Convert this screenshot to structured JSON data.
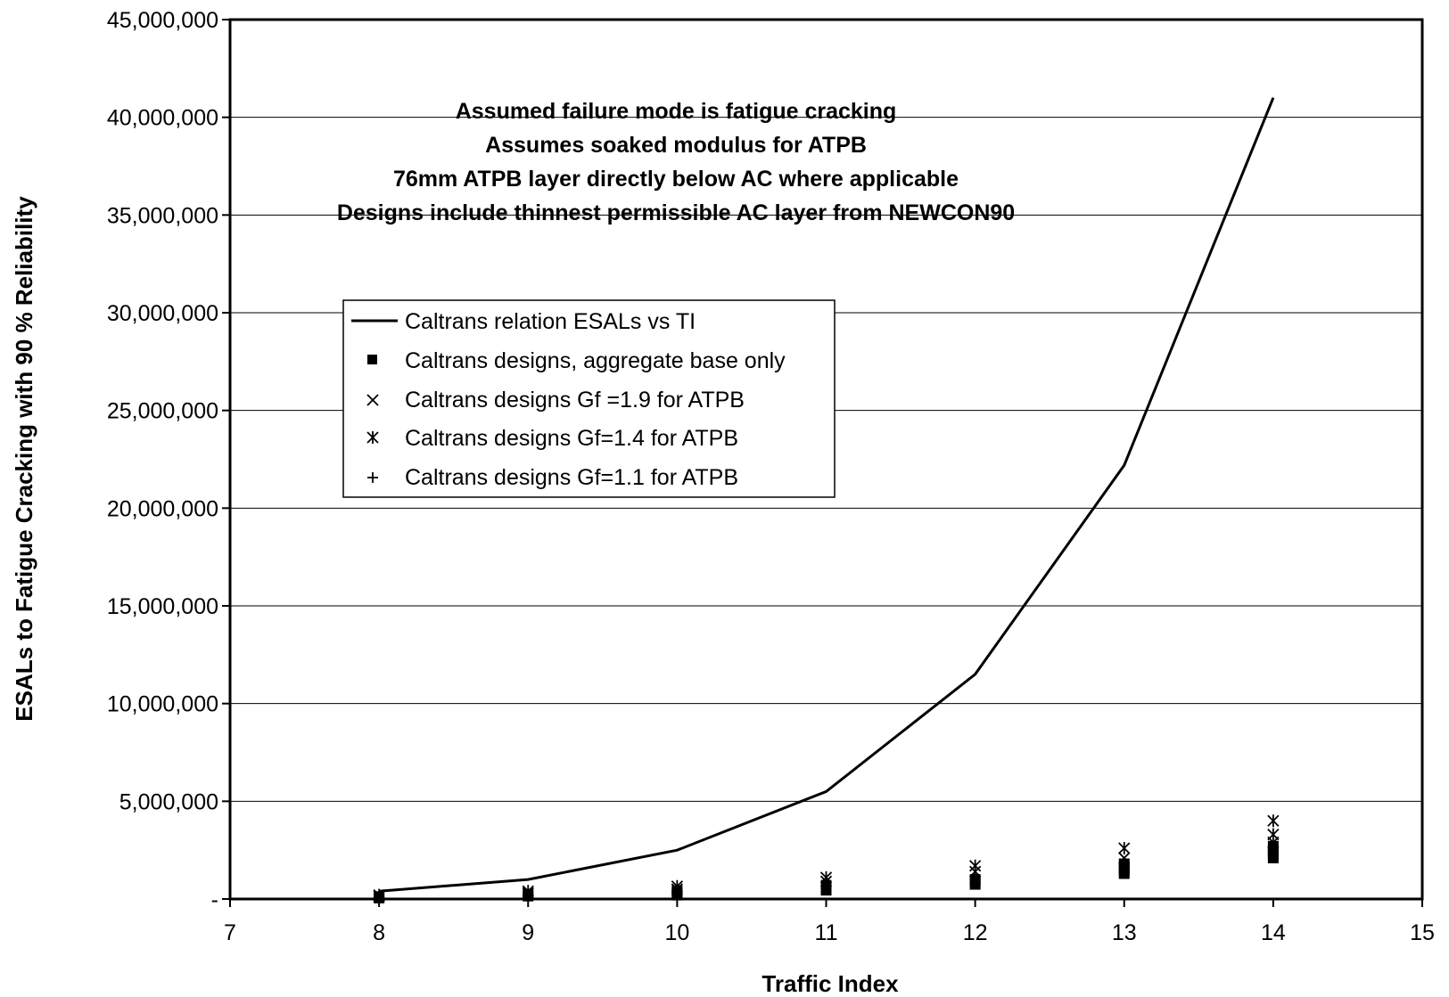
{
  "chart_data": {
    "type": "scatter",
    "xlabel": "Traffic Index",
    "ylabel": "ESALs to Fatigue Cracking with 90 % Reliability",
    "xlim": [
      7,
      15
    ],
    "ylim": [
      0,
      45000000
    ],
    "x_ticks": [
      "7",
      "8",
      "9",
      "10",
      "11",
      "12",
      "13",
      "14",
      "15"
    ],
    "y_ticks": [
      "-",
      "5,000,000",
      "10,000,000",
      "15,000,000",
      "20,000,000",
      "25,000,000",
      "30,000,000",
      "35,000,000",
      "40,000,000",
      "45,000,000"
    ],
    "grid": "horizontal",
    "legend_position": "upper-left-center",
    "annotations": [
      "Assumed failure mode is fatigue cracking",
      "Assumes soaked modulus for ATPB",
      "76mm ATPB layer directly below AC where applicable",
      "Designs include thinnest permissible AC layer from NEWCON90"
    ],
    "series": [
      {
        "name": "Caltrans relation ESALs vs TI",
        "marker": "line",
        "x": [
          8,
          9,
          10,
          11,
          12,
          13,
          14
        ],
        "y": [
          400000,
          1000000,
          2500000,
          5500000,
          11500000,
          22200000,
          41000000
        ]
      },
      {
        "name": "Caltrans designs, aggregate base only",
        "marker": "square",
        "x": [
          8,
          8,
          9,
          9,
          10,
          10,
          10,
          11,
          11,
          11,
          12,
          12,
          12,
          13,
          13,
          13,
          13,
          14,
          14,
          14,
          14
        ],
        "y": [
          50000,
          120000,
          150000,
          250000,
          200000,
          320000,
          420000,
          450000,
          600000,
          700000,
          750000,
          900000,
          1000000,
          1300000,
          1450000,
          1600000,
          1800000,
          2100000,
          2300000,
          2500000,
          2700000
        ]
      },
      {
        "name": "Caltrans designs Gf =1.9 for ATPB",
        "marker": "x",
        "x": [
          8,
          9,
          10,
          11,
          12,
          13,
          14
        ],
        "y": [
          150000,
          300000,
          500000,
          900000,
          1400000,
          2100000,
          2900000
        ]
      },
      {
        "name": "Caltrans designs Gf=1.4 for ATPB",
        "marker": "asterisk",
        "x": [
          8,
          9,
          10,
          11,
          12,
          13,
          14,
          14
        ],
        "y": [
          200000,
          400000,
          650000,
          1100000,
          1700000,
          2600000,
          3300000,
          4000000
        ]
      },
      {
        "name": "Caltrans designs Gf=1.1 for ATPB",
        "marker": "plus",
        "x": [
          8,
          9,
          10,
          11,
          12,
          13,
          14
        ],
        "y": [
          100000,
          200000,
          350000,
          650000,
          1100000,
          1700000,
          2400000
        ]
      }
    ]
  }
}
